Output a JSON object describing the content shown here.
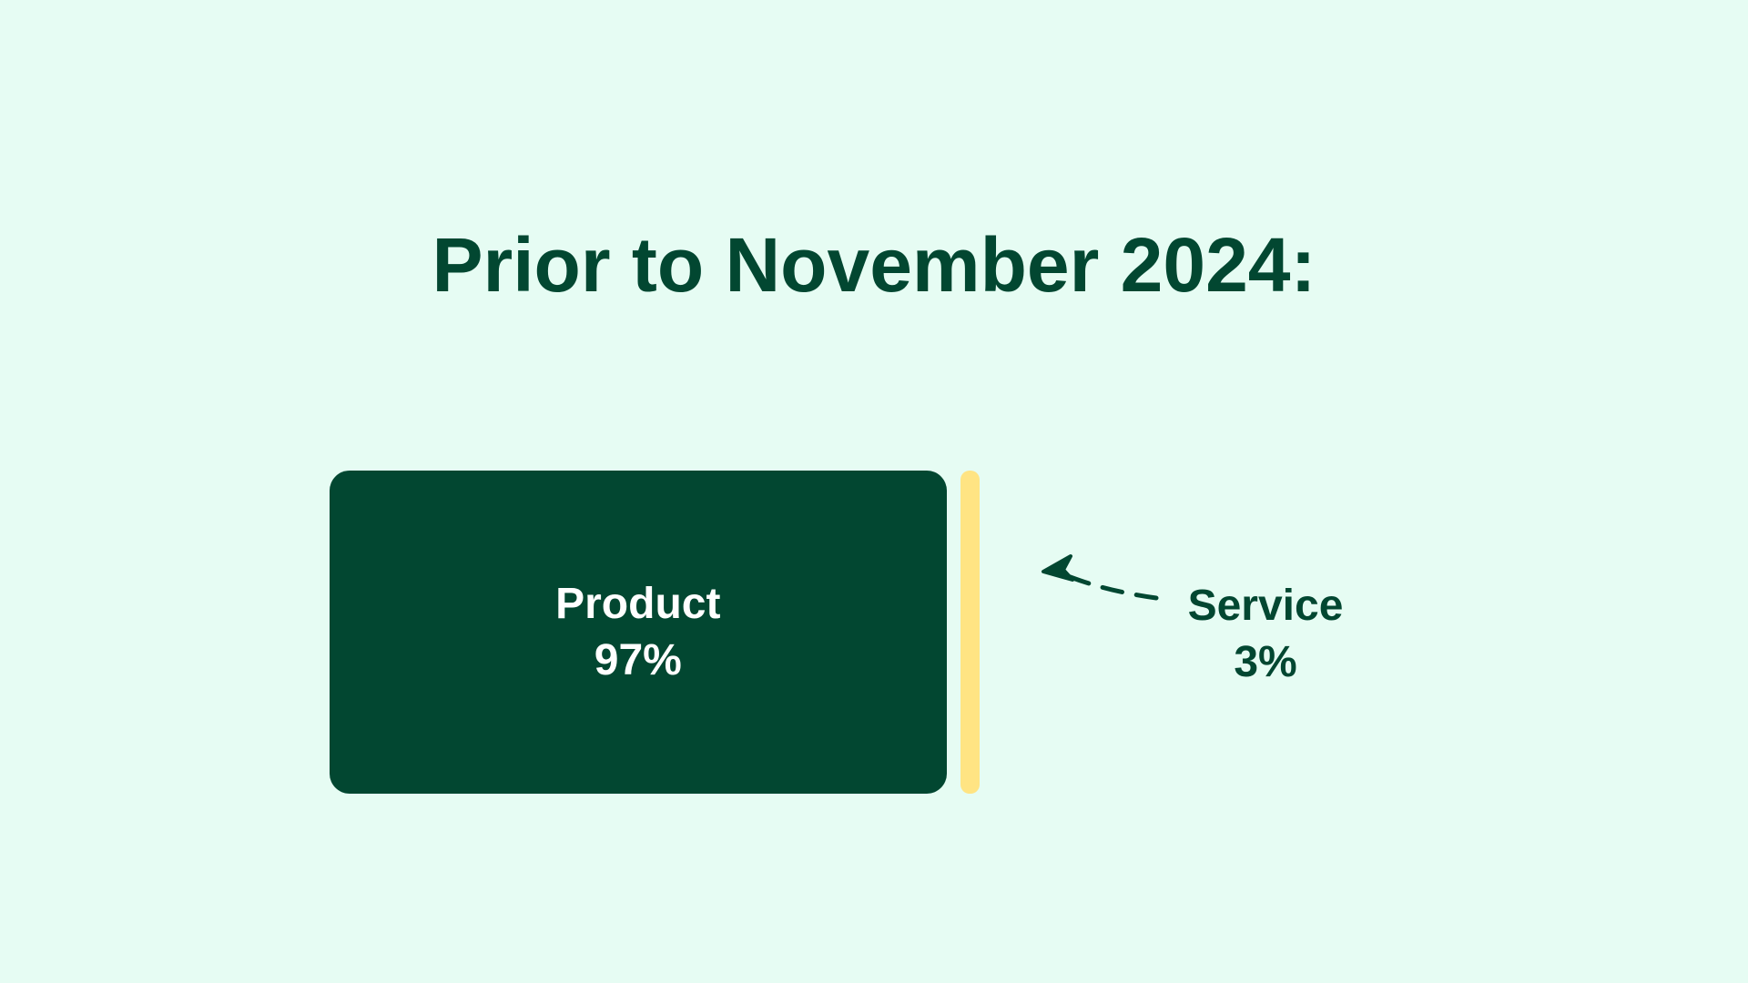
{
  "chart_data": {
    "type": "bar",
    "title": "Prior to November 2024:",
    "categories": [
      "Product",
      "Service"
    ],
    "values": [
      97,
      3
    ],
    "value_labels": [
      "97%",
      "3%"
    ],
    "units": "%",
    "colors": [
      "#024731",
      "#FFE483"
    ],
    "orientation": "horizontal-stacked",
    "grid": false,
    "legend": "none"
  },
  "colors": {
    "background": "#E6FCF3",
    "text": "#024731",
    "inside_text": "#FFFFFF"
  }
}
